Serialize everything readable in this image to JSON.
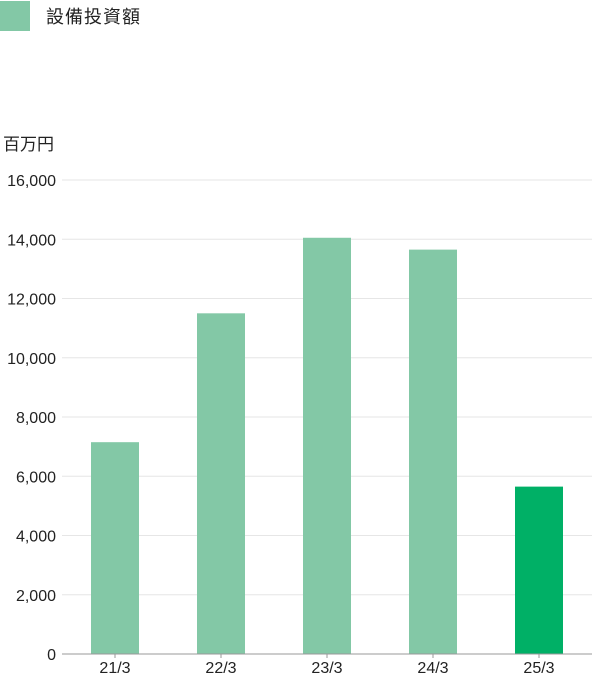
{
  "legend": {
    "label": "設備投資額",
    "color": "#83c8a6"
  },
  "unit": "百万円",
  "chart_data": {
    "type": "bar",
    "categories": [
      "21/3",
      "22/3",
      "23/3",
      "24/3",
      "25/3"
    ],
    "series": [
      {
        "name": "設備投資額",
        "values": [
          7150,
          11500,
          14050,
          13650,
          5650
        ],
        "colors": [
          "#83c8a6",
          "#83c8a6",
          "#83c8a6",
          "#83c8a6",
          "#00b066"
        ]
      }
    ],
    "ylim": [
      0,
      16000
    ],
    "yticks": [
      0,
      2000,
      4000,
      6000,
      8000,
      10000,
      12000,
      14000,
      16000
    ],
    "ytick_labels": [
      "0",
      "2,000",
      "4,000",
      "6,000",
      "8,000",
      "10,000",
      "12,000",
      "14,000",
      "16,000"
    ],
    "grid": true
  }
}
